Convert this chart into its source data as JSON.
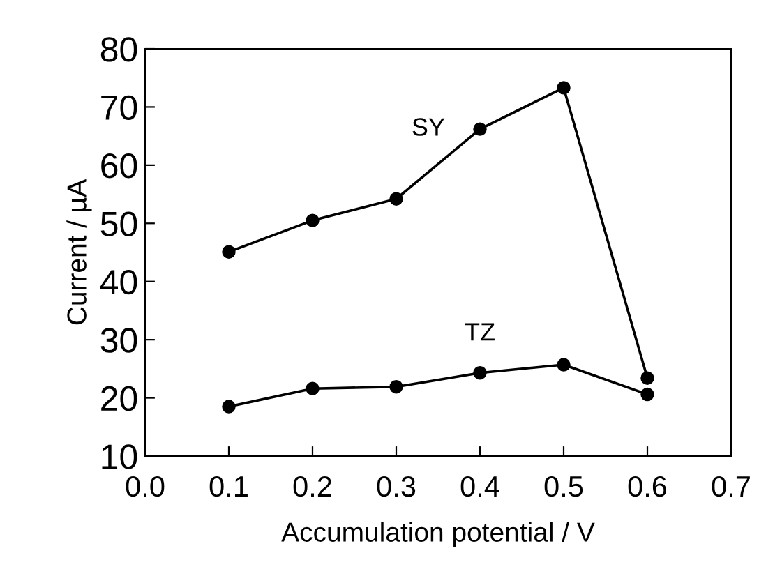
{
  "chart_data": {
    "type": "line",
    "xlabel": "Accumulation potential / V",
    "ylabel": "Current / µA",
    "x": [
      0.1,
      0.2,
      0.3,
      0.4,
      0.5,
      0.6
    ],
    "series": [
      {
        "name": "SY",
        "color": "#000000",
        "values": [
          45.1,
          50.5,
          54.2,
          66.2,
          73.3,
          23.4
        ]
      },
      {
        "name": "TZ",
        "color": "#000000",
        "values": [
          18.5,
          21.6,
          21.9,
          24.3,
          25.7,
          20.6
        ]
      }
    ],
    "xlim": [
      0.0,
      0.7
    ],
    "xticks": [
      {
        "value": 0.0,
        "label": "0.0"
      },
      {
        "value": 0.1,
        "label": "0.1"
      },
      {
        "value": 0.2,
        "label": "0.2"
      },
      {
        "value": 0.3,
        "label": "0.3"
      },
      {
        "value": 0.4,
        "label": "0.4"
      },
      {
        "value": 0.5,
        "label": "0.5"
      },
      {
        "value": 0.6,
        "label": "0.6"
      },
      {
        "value": 0.7,
        "label": "0.7"
      }
    ],
    "ylim": [
      10,
      80
    ],
    "yticks": [
      10,
      20,
      30,
      40,
      50,
      60,
      70,
      80
    ],
    "grid": false,
    "legend": false,
    "marker": "circle",
    "line_style": "solid"
  }
}
